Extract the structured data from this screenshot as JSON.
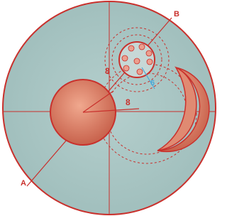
{
  "labels": {
    "point_a": "A",
    "point_b": "B",
    "radius_upper": "8",
    "radius_lower": "8",
    "small_radius": "6"
  }
}
